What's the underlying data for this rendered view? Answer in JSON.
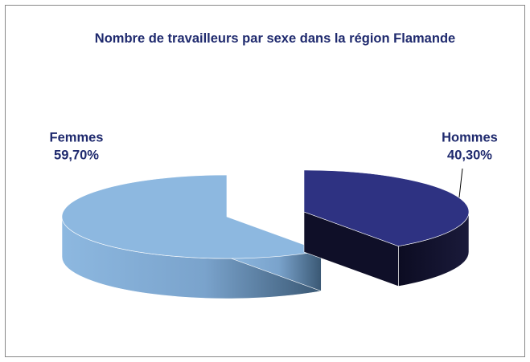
{
  "chart_data": {
    "type": "pie",
    "title": "Nombre de travailleurs par sexe dans la région Flamande",
    "categories": [
      "Hommes",
      "Femmes"
    ],
    "values": [
      40.3,
      59.7
    ],
    "value_labels": [
      "40,30%",
      "59,70%"
    ],
    "colors": [
      "#2e3282",
      "#8db8e0"
    ]
  }
}
